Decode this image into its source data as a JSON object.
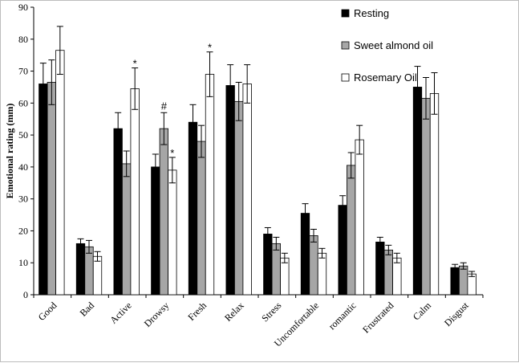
{
  "chart_data": {
    "type": "bar",
    "title": "",
    "xlabel": "",
    "ylabel": "Emotional rating (mm)",
    "ylim": [
      0,
      90
    ],
    "yticks": [
      0,
      10,
      20,
      30,
      40,
      50,
      60,
      70,
      80,
      90
    ],
    "grid": false,
    "legend_position": "top-right",
    "categories": [
      "Good",
      "Bad",
      "Active",
      "Drowsy",
      "Fresh",
      "Relax",
      "Stress",
      "Uncomfortable",
      "romantic",
      "Frustrated",
      "Calm",
      "Disgust"
    ],
    "series": [
      {
        "name": "Resting",
        "color": "#000000",
        "values": [
          66,
          16,
          52,
          40,
          54,
          65.5,
          19,
          25.5,
          28,
          16.5,
          65,
          8.5
        ],
        "errors": [
          6.5,
          1.5,
          5,
          4,
          5.5,
          6.5,
          2,
          3,
          3,
          1.5,
          6.5,
          1
        ]
      },
      {
        "name": "Sweet almond oil",
        "color": "#a6a6a6",
        "values": [
          66.5,
          15,
          41,
          52,
          48,
          60.5,
          16,
          18.5,
          40.5,
          14,
          61.5,
          9
        ],
        "errors": [
          7,
          2,
          4,
          5,
          5,
          6,
          2,
          2,
          4,
          1.5,
          6.5,
          1
        ]
      },
      {
        "name": "Rosemary Oil",
        "color": "#ffffff",
        "values": [
          76.5,
          12,
          64.5,
          39,
          69,
          66,
          11.5,
          13,
          48.5,
          11.5,
          63,
          6.5
        ],
        "errors": [
          7.5,
          1.5,
          6.5,
          4,
          7,
          6,
          1.5,
          1.5,
          4.5,
          1.5,
          6.5,
          0.8
        ]
      }
    ],
    "annotations": [
      {
        "category": "Active",
        "series": "Rosemary Oil",
        "text": "*"
      },
      {
        "category": "Drowsy",
        "series": "Sweet almond oil",
        "text": "#"
      },
      {
        "category": "Drowsy",
        "series": "Rosemary Oil",
        "text": "*"
      },
      {
        "category": "Fresh",
        "series": "Rosemary Oil",
        "text": "*"
      }
    ]
  }
}
